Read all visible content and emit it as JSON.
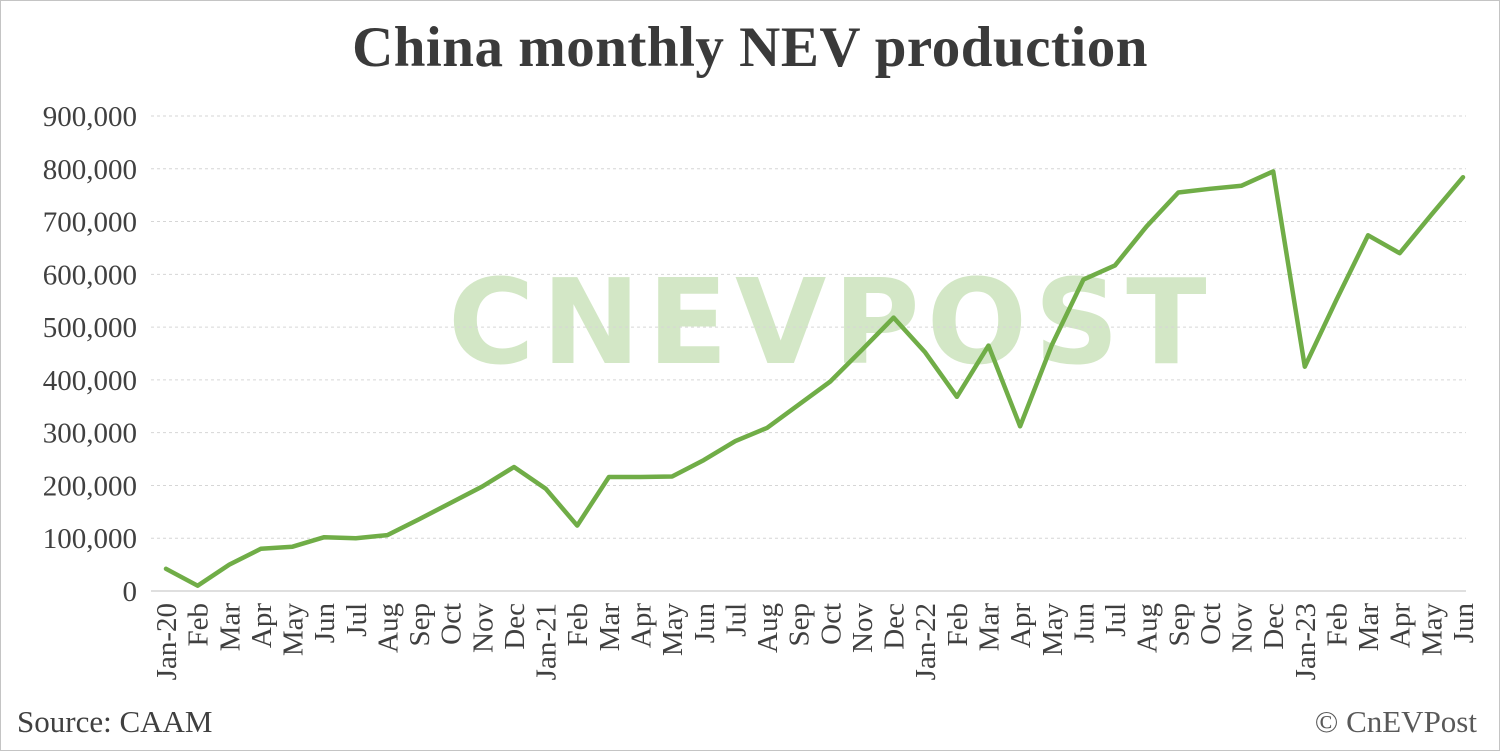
{
  "watermark": {
    "text": "CNEVPOST"
  },
  "footer": {
    "source": "Source: CAAM",
    "copyright": "© CnEVPost"
  },
  "chart_data": {
    "type": "line",
    "title": "China monthly NEV production",
    "x": [
      "Jan-20",
      "Feb",
      "Mar",
      "Apr",
      "May",
      "Jun",
      "Jul",
      "Aug",
      "Sep",
      "Oct",
      "Nov",
      "Dec",
      "Jan-21",
      "Feb",
      "Mar",
      "Apr",
      "May",
      "Jun",
      "Jul",
      "Aug",
      "Sep",
      "Oct",
      "Nov",
      "Dec",
      "Jan-22",
      "Feb",
      "Mar",
      "Apr",
      "May",
      "Jun",
      "Jul",
      "Aug",
      "Sep",
      "Oct",
      "Nov",
      "Dec",
      "Jan-23",
      "Feb",
      "Mar",
      "Apr",
      "May",
      "Jun"
    ],
    "series": [
      {
        "name": "China monthly NEV production",
        "values": [
          42000,
          10000,
          50000,
          80000,
          84000,
          102000,
          100000,
          106000,
          136000,
          167000,
          198000,
          235000,
          194000,
          124000,
          216000,
          216000,
          217000,
          248000,
          284000,
          309000,
          353000,
          397000,
          457000,
          518000,
          452000,
          368000,
          465000,
          312000,
          466000,
          590000,
          617000,
          691000,
          755000,
          762000,
          768000,
          795000,
          425000,
          552000,
          674000,
          640000,
          713000,
          784000
        ]
      }
    ],
    "ylim": [
      0,
      900000
    ],
    "ytick_step": 100000,
    "ytick_labels": [
      "0",
      "100,000",
      "200,000",
      "300,000",
      "400,000",
      "500,000",
      "600,000",
      "700,000",
      "800,000",
      "900,000"
    ],
    "grid": "horizontal-dashed",
    "legend": "none",
    "line_color": "#70ad47",
    "gridline_color": "#d6d6d6",
    "axis_line_color": "#bfbfbf",
    "tick_label_color": "#404040"
  }
}
